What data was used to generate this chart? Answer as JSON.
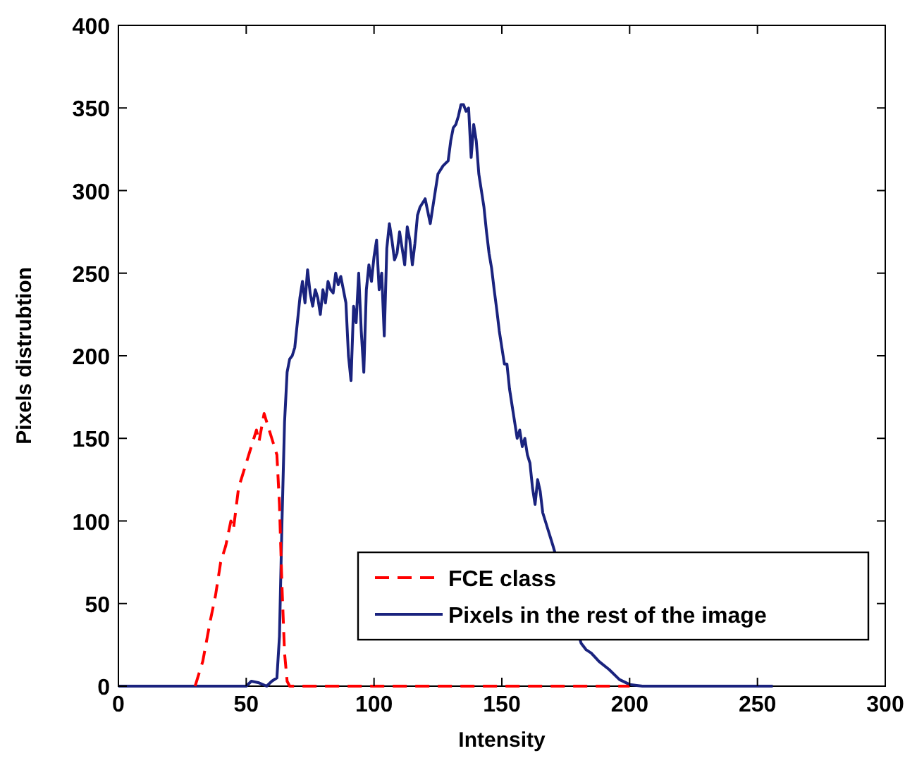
{
  "chart_data": {
    "type": "line",
    "xlabel": "Intensity",
    "ylabel": "Pixels distrubtion",
    "xlim": [
      0,
      300
    ],
    "ylim": [
      0,
      400
    ],
    "xticks": [
      0,
      50,
      100,
      150,
      200,
      250,
      300
    ],
    "yticks": [
      0,
      50,
      100,
      150,
      200,
      250,
      300,
      350,
      400
    ],
    "grid": false,
    "legend": "bottom right",
    "marker": "none",
    "series": [
      {
        "name": "FCE class",
        "color": "#ff0000",
        "line_style": "dashed",
        "x": [
          30,
          33,
          36,
          38,
          40,
          42,
          44,
          45,
          47,
          49,
          51,
          52,
          54,
          55,
          57,
          58,
          60,
          62,
          63,
          64,
          65,
          66,
          67,
          120,
          200
        ],
        "values": [
          0,
          15,
          40,
          55,
          75,
          85,
          100,
          95,
          120,
          130,
          140,
          145,
          155,
          148,
          165,
          160,
          150,
          140,
          110,
          60,
          20,
          3,
          0,
          0,
          0
        ]
      },
      {
        "name": "Pixels in the rest of the image",
        "color": "#1a237e",
        "line_style": "solid",
        "x": [
          0,
          40,
          50,
          52,
          55,
          58,
          60,
          62,
          63,
          64,
          65,
          66,
          67,
          68,
          69,
          70,
          71,
          72,
          73,
          74,
          75,
          76,
          77,
          78,
          79,
          80,
          81,
          82,
          83,
          84,
          85,
          86,
          87,
          88,
          89,
          90,
          91,
          92,
          93,
          94,
          95,
          96,
          97,
          98,
          99,
          100,
          101,
          102,
          103,
          104,
          105,
          106,
          107,
          108,
          109,
          110,
          111,
          112,
          113,
          114,
          115,
          116,
          117,
          118,
          120,
          122,
          124,
          125,
          127,
          129,
          130,
          131,
          132,
          133,
          134,
          135,
          136,
          137,
          138,
          139,
          140,
          141,
          142,
          143,
          144,
          145,
          146,
          147,
          148,
          149,
          150,
          151,
          152,
          153,
          154,
          155,
          156,
          157,
          158,
          159,
          160,
          161,
          162,
          163,
          164,
          165,
          166,
          167,
          168,
          169,
          170,
          181,
          183,
          185,
          188,
          192,
          196,
          200,
          205,
          256
        ],
        "values": [
          0,
          0,
          0,
          3,
          2,
          0,
          3,
          5,
          30,
          100,
          160,
          190,
          198,
          200,
          205,
          220,
          235,
          245,
          232,
          252,
          238,
          230,
          240,
          235,
          225,
          240,
          232,
          245,
          240,
          238,
          250,
          243,
          248,
          240,
          232,
          200,
          185,
          230,
          220,
          250,
          215,
          190,
          240,
          255,
          245,
          260,
          270,
          240,
          250,
          212,
          265,
          280,
          270,
          258,
          262,
          275,
          265,
          255,
          278,
          270,
          255,
          268,
          285,
          290,
          295,
          280,
          300,
          310,
          315,
          318,
          330,
          338,
          340,
          345,
          352,
          352,
          348,
          350,
          320,
          340,
          330,
          310,
          300,
          290,
          275,
          262,
          253,
          240,
          228,
          215,
          205,
          195,
          195,
          180,
          170,
          160,
          150,
          155,
          145,
          150,
          140,
          135,
          120,
          110,
          125,
          118,
          105,
          100,
          95,
          90,
          85,
          26,
          22,
          20,
          15,
          10,
          4,
          1,
          0,
          0
        ]
      }
    ]
  }
}
